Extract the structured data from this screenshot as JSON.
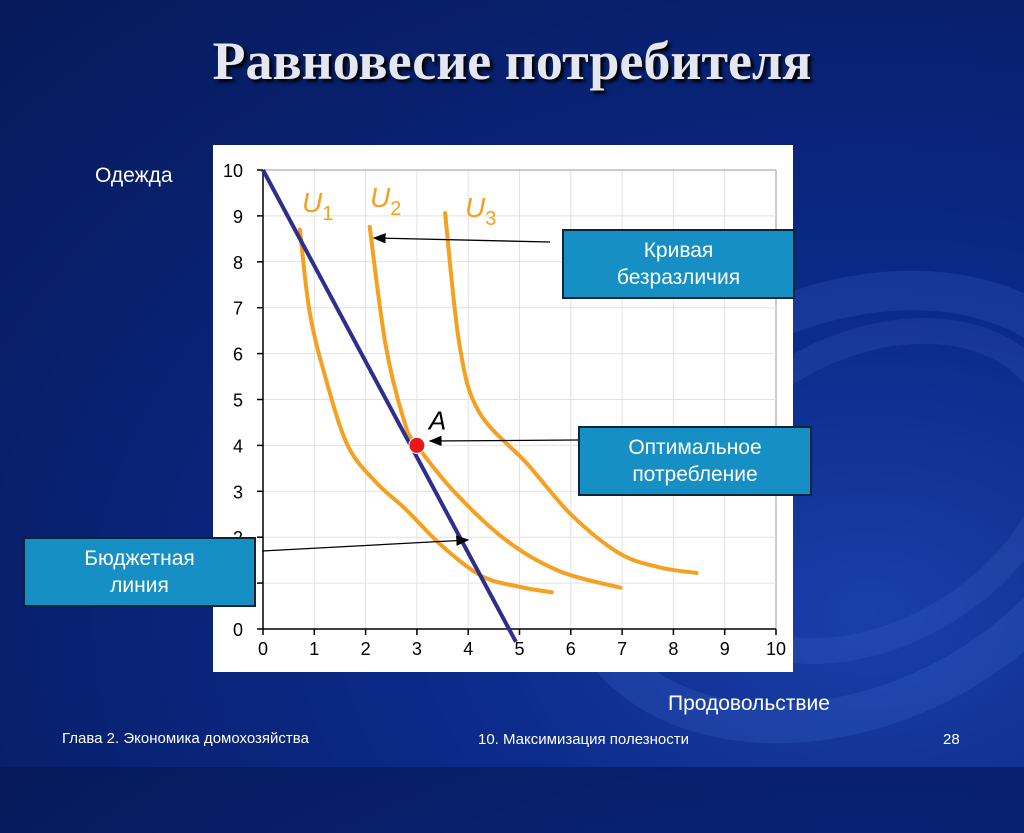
{
  "title": "Равновесие потребителя",
  "footer": {
    "left": "Глава 2. Экономика домохозяйства",
    "center": "10. Максимизация полезности",
    "page": "28"
  },
  "callouts": {
    "indifference": [
      "Кривая",
      "безразличия"
    ],
    "optimal": [
      "Оптимальное",
      "потребление"
    ],
    "budget": [
      "Бюджетная",
      "линия"
    ]
  },
  "colors": {
    "background": "#0b2a8a",
    "indifference_curve": "#f5a020",
    "budget_line": "#2e2e8c",
    "optimum_point": "#e81818",
    "callout": "#1690c4"
  },
  "chart_data": {
    "type": "line",
    "xlabel": "Продовольствие",
    "ylabel": "Одежда",
    "xlim": [
      0,
      10
    ],
    "ylim": [
      0,
      10
    ],
    "xticks": [
      "0",
      "1",
      "2",
      "3",
      "4",
      "5",
      "6",
      "7",
      "8",
      "9",
      "10"
    ],
    "yticks": [
      "0",
      "1",
      "2",
      "3",
      "4",
      "5",
      "6",
      "7",
      "8",
      "9",
      "10"
    ],
    "grid": true,
    "series": [
      {
        "name": "U1",
        "sub": "1",
        "role": "indifference",
        "points": [
          [
            0.72,
            8.7
          ],
          [
            0.91,
            6.9
          ],
          [
            1.22,
            5.47
          ],
          [
            1.65,
            4.0
          ],
          [
            2.2,
            3.2
          ],
          [
            2.78,
            2.61
          ],
          [
            3.5,
            1.8
          ],
          [
            4.27,
            1.15
          ],
          [
            5.0,
            0.92
          ],
          [
            5.63,
            0.8
          ]
        ]
      },
      {
        "name": "U2",
        "sub": "2",
        "role": "indifference",
        "points": [
          [
            2.08,
            8.76
          ],
          [
            2.39,
            6.19
          ],
          [
            2.76,
            4.5
          ],
          [
            3.0,
            4.0
          ],
          [
            3.77,
            2.94
          ],
          [
            4.78,
            1.9
          ],
          [
            5.8,
            1.25
          ],
          [
            6.97,
            0.9
          ]
        ]
      },
      {
        "name": "U3",
        "sub": "3",
        "role": "indifference",
        "points": [
          [
            3.55,
            9.06
          ],
          [
            3.83,
            6.19
          ],
          [
            4.21,
            4.73
          ],
          [
            5.15,
            3.6
          ],
          [
            6.0,
            2.5
          ],
          [
            6.93,
            1.66
          ],
          [
            7.7,
            1.35
          ],
          [
            8.45,
            1.22
          ]
        ]
      },
      {
        "role": "budget",
        "points": [
          [
            0,
            10
          ],
          [
            4.93,
            -0.28
          ]
        ]
      }
    ],
    "annotations": [
      {
        "label": "A",
        "x": 3.0,
        "y": 4.0
      }
    ]
  }
}
